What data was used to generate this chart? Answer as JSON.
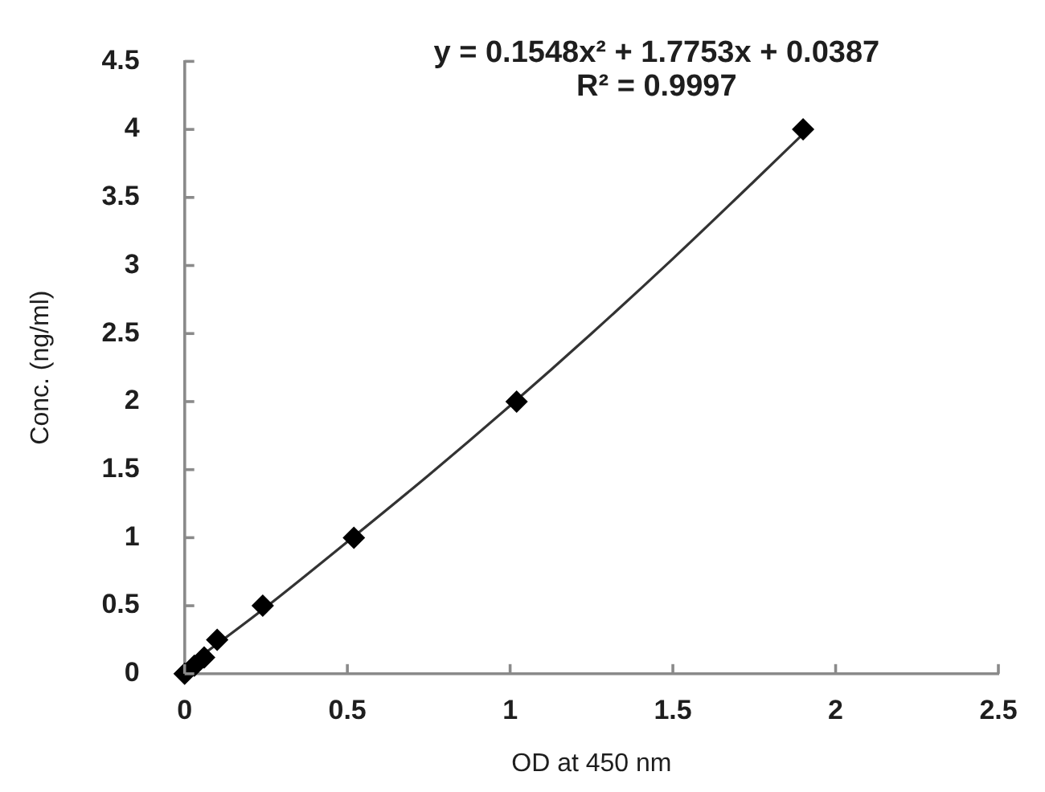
{
  "chart_data": {
    "type": "scatter",
    "xlabel": "OD at 450 nm",
    "ylabel": "Conc. (ng/ml)",
    "annotations": [
      "y = 0.1548x² + 1.7753x + 0.0387",
      "R² = 0.9997"
    ],
    "x": [
      0,
      0.03,
      0.06,
      0.1,
      0.24,
      0.52,
      1.02,
      1.9
    ],
    "series": [
      {
        "color": "#000000",
        "values": [
          0,
          0.06,
          0.12,
          0.25,
          0.5,
          1,
          2,
          4
        ]
      },
      {
        "type": "line",
        "marker": "none",
        "color": "#333333",
        "x": [
          0,
          0.25,
          0.5,
          0.75,
          1,
          1.25,
          1.5,
          1.75,
          1.91
        ],
        "values": [
          0.04,
          0.49,
          0.97,
          1.46,
          1.97,
          2.5,
          3.05,
          3.62,
          3.99
        ]
      }
    ],
    "xlim": [
      0,
      2.5
    ],
    "xticks": [
      0,
      0.5,
      1,
      1.5,
      2,
      2.5
    ],
    "ylim": [
      0,
      4.5
    ],
    "yticks": [
      0,
      0.5,
      1,
      1.5,
      2,
      2.5,
      3,
      3.5,
      4,
      4.5
    ],
    "grid": false,
    "legend": false,
    "marker": "diamond"
  }
}
